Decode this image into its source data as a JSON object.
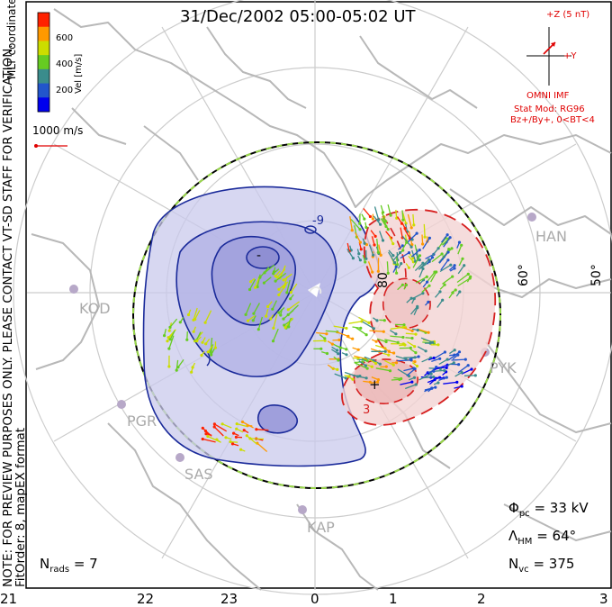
{
  "title": "31/Dec/2002 05:00-05:02 UT",
  "note_line1": "NOTE: FOR PREVIEW PURPOSES ONLY. PLEASE CONTACT VT-SD STAFF FOR VERIFICATION.",
  "note_line2": "FitOrder: 8, mapEX format",
  "coordinates_label": "MLT coordinates",
  "reference_vector_label": "1000 m/s",
  "colorbar": {
    "label": "Vel [m/s]",
    "ticks": [
      "600",
      "400",
      "200"
    ],
    "colors": [
      "#0000ee",
      "#2255cc",
      "#3a8c8c",
      "#66cc22",
      "#ccdd00",
      "#ff9900",
      "#ff2200"
    ]
  },
  "imf": {
    "z_label": "+Z (5 nT)",
    "y_label": "+Y",
    "source": "OMNI IMF",
    "stat_mod": "Stat Mod: RG96",
    "condition": "Bz+/By+, 0<BT<4"
  },
  "sites": [
    "HAN",
    "KOD",
    "PYK",
    "PGR",
    "SAS",
    "KAP"
  ],
  "latitude_labels": [
    "80",
    "60°",
    "50°"
  ],
  "contour_labels": [
    "-9",
    "-",
    "3",
    "+"
  ],
  "stats": {
    "phi_pc": {
      "symbol": "Φ",
      "sub": "pc",
      "value": "= 33 kV"
    },
    "lambda_hm": {
      "symbol": "Λ",
      "sub": "HM",
      "value": "= 64°"
    },
    "n_vc": {
      "symbol": "N",
      "sub": "vc",
      "value": "= 375"
    },
    "n_rads": {
      "symbol": "N",
      "sub": "rads",
      "value": "= 7"
    }
  },
  "mlt_axis": [
    "21",
    "22",
    "23",
    "0",
    "1",
    "2",
    "3"
  ]
}
